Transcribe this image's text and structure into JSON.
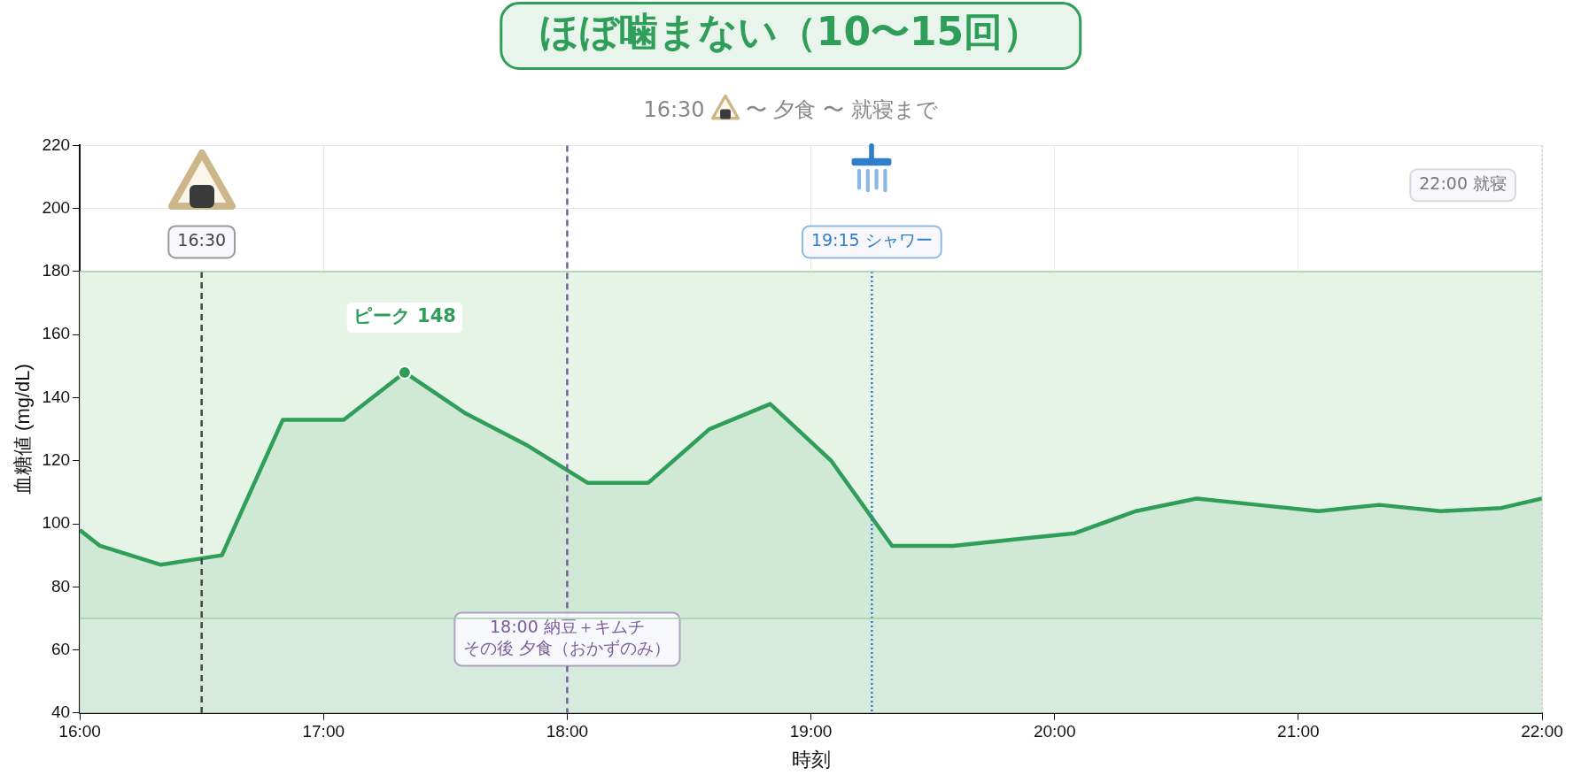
{
  "chart_data": {
    "type": "area",
    "title": "ほぼ噛まない（10〜15回）",
    "subtitle": "16:30 〜 夕食 〜 就寝まで",
    "xlabel": "時刻",
    "ylabel": "血糖値 (mg/dL)",
    "x": [
      16,
      16.083,
      16.333,
      16.583,
      16.833,
      17.083,
      17.333,
      17.583,
      17.833,
      18.083,
      18.333,
      18.583,
      18.833,
      19.083,
      19.333,
      19.583,
      19.833,
      20.083,
      20.333,
      20.583,
      20.833,
      21.083,
      21.333,
      21.583,
      21.833,
      22
    ],
    "series": [
      {
        "color": "#2e9e58",
        "values": [
          98,
          93,
          87,
          90,
          133,
          133,
          148,
          135,
          125,
          113,
          113,
          130,
          138,
          120,
          93,
          93,
          95,
          97,
          104,
          108,
          106,
          104,
          106,
          104,
          105,
          108
        ]
      }
    ],
    "xlim": [
      16,
      22
    ],
    "xticks": [
      {
        "value": 16,
        "label": "16:00"
      },
      {
        "value": 17,
        "label": "17:00"
      },
      {
        "value": 18,
        "label": "18:00"
      },
      {
        "value": 19,
        "label": "19:00"
      },
      {
        "value": 20,
        "label": "20:00"
      },
      {
        "value": 21,
        "label": "21:00"
      },
      {
        "value": 22,
        "label": "22:00"
      }
    ],
    "ylim": [
      40,
      220
    ],
    "yticks": [
      40,
      60,
      80,
      100,
      120,
      140,
      160,
      180,
      200,
      220
    ],
    "grid": true,
    "legend": false,
    "marker": "none",
    "line_style": "solid",
    "bands": [
      {
        "axis": "y",
        "from": 70,
        "to": 180,
        "color": "#e6f4e8"
      },
      {
        "axis": "y",
        "from": 40,
        "to": 70,
        "color": "#edf5ef"
      }
    ],
    "ref_lines": [
      {
        "axis": "x",
        "value": 16.5,
        "label": "16:30",
        "color": "#444444",
        "line_style": "dashed"
      },
      {
        "axis": "x",
        "value": 18,
        "label": "18:00 納豆＋キムチ",
        "color": "#7b5e9c",
        "line_style": "dashed"
      },
      {
        "axis": "x",
        "value": 19.25,
        "label": "19:15 シャワー",
        "color": "#2f7fc8",
        "line_style": "dotted"
      },
      {
        "axis": "x",
        "value": 22,
        "label": "22:00 就寝",
        "color": "#bbbbbb",
        "line_style": "dotted"
      },
      {
        "axis": "y",
        "value": 70,
        "color": "#a3d0a5",
        "line_style": "solid"
      },
      {
        "axis": "y",
        "value": 180,
        "color": "#a3d0a5",
        "line_style": "solid"
      }
    ],
    "annotations": [
      {
        "text": "ピーク 148",
        "x": 17.333,
        "y": 148
      },
      "その後 夕食（おかずのみ）"
    ]
  }
}
